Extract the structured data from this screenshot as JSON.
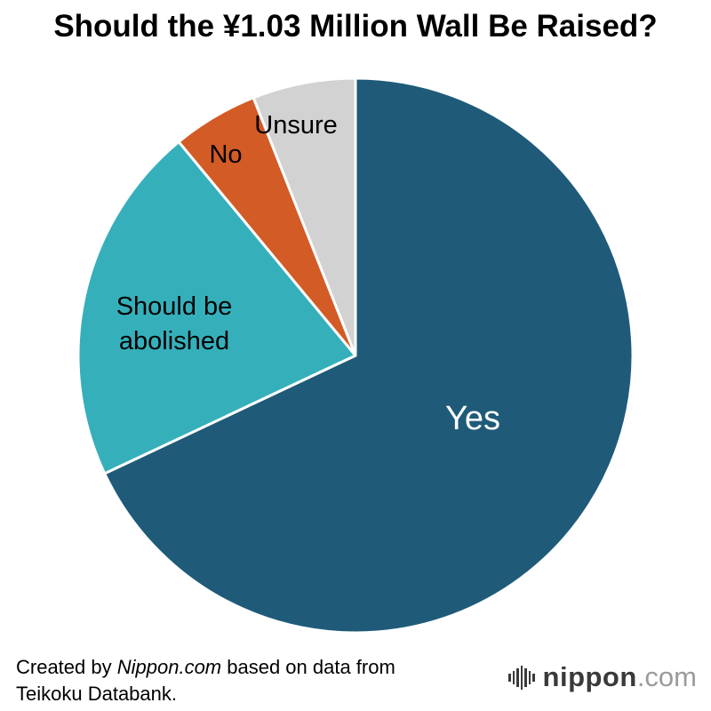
{
  "title": "Should the ¥1.03 Million Wall Be Raised?",
  "chart_data": {
    "type": "pie",
    "title": "Should the ¥1.03 Million Wall Be Raised?",
    "start_angle_deg": 0,
    "direction": "clockwise",
    "values_shown": false,
    "values_are_estimated_percent": true,
    "slices": [
      {
        "label": "Yes",
        "value": 68,
        "color": "#1f5b79",
        "label_color": "#ffffff"
      },
      {
        "label": "Should be abolished",
        "value": 21,
        "color": "#35b0bb",
        "label_color": "#000000"
      },
      {
        "label": "No",
        "value": 5,
        "color": "#d35b25",
        "label_color": "#000000"
      },
      {
        "label": "Unsure",
        "value": 6,
        "color": "#d2d2d2",
        "label_color": "#000000"
      }
    ],
    "separator_color": "#ffffff"
  },
  "labels": {
    "abolished_display": "Should be\nabolished"
  },
  "footer": {
    "credit_prefix": "Created by ",
    "credit_brand": "Nippon.com",
    "credit_suffix": " based on data from",
    "credit_line2": "Teikoku Databank.",
    "logo_name": "nippon",
    "logo_tld": ".com"
  }
}
